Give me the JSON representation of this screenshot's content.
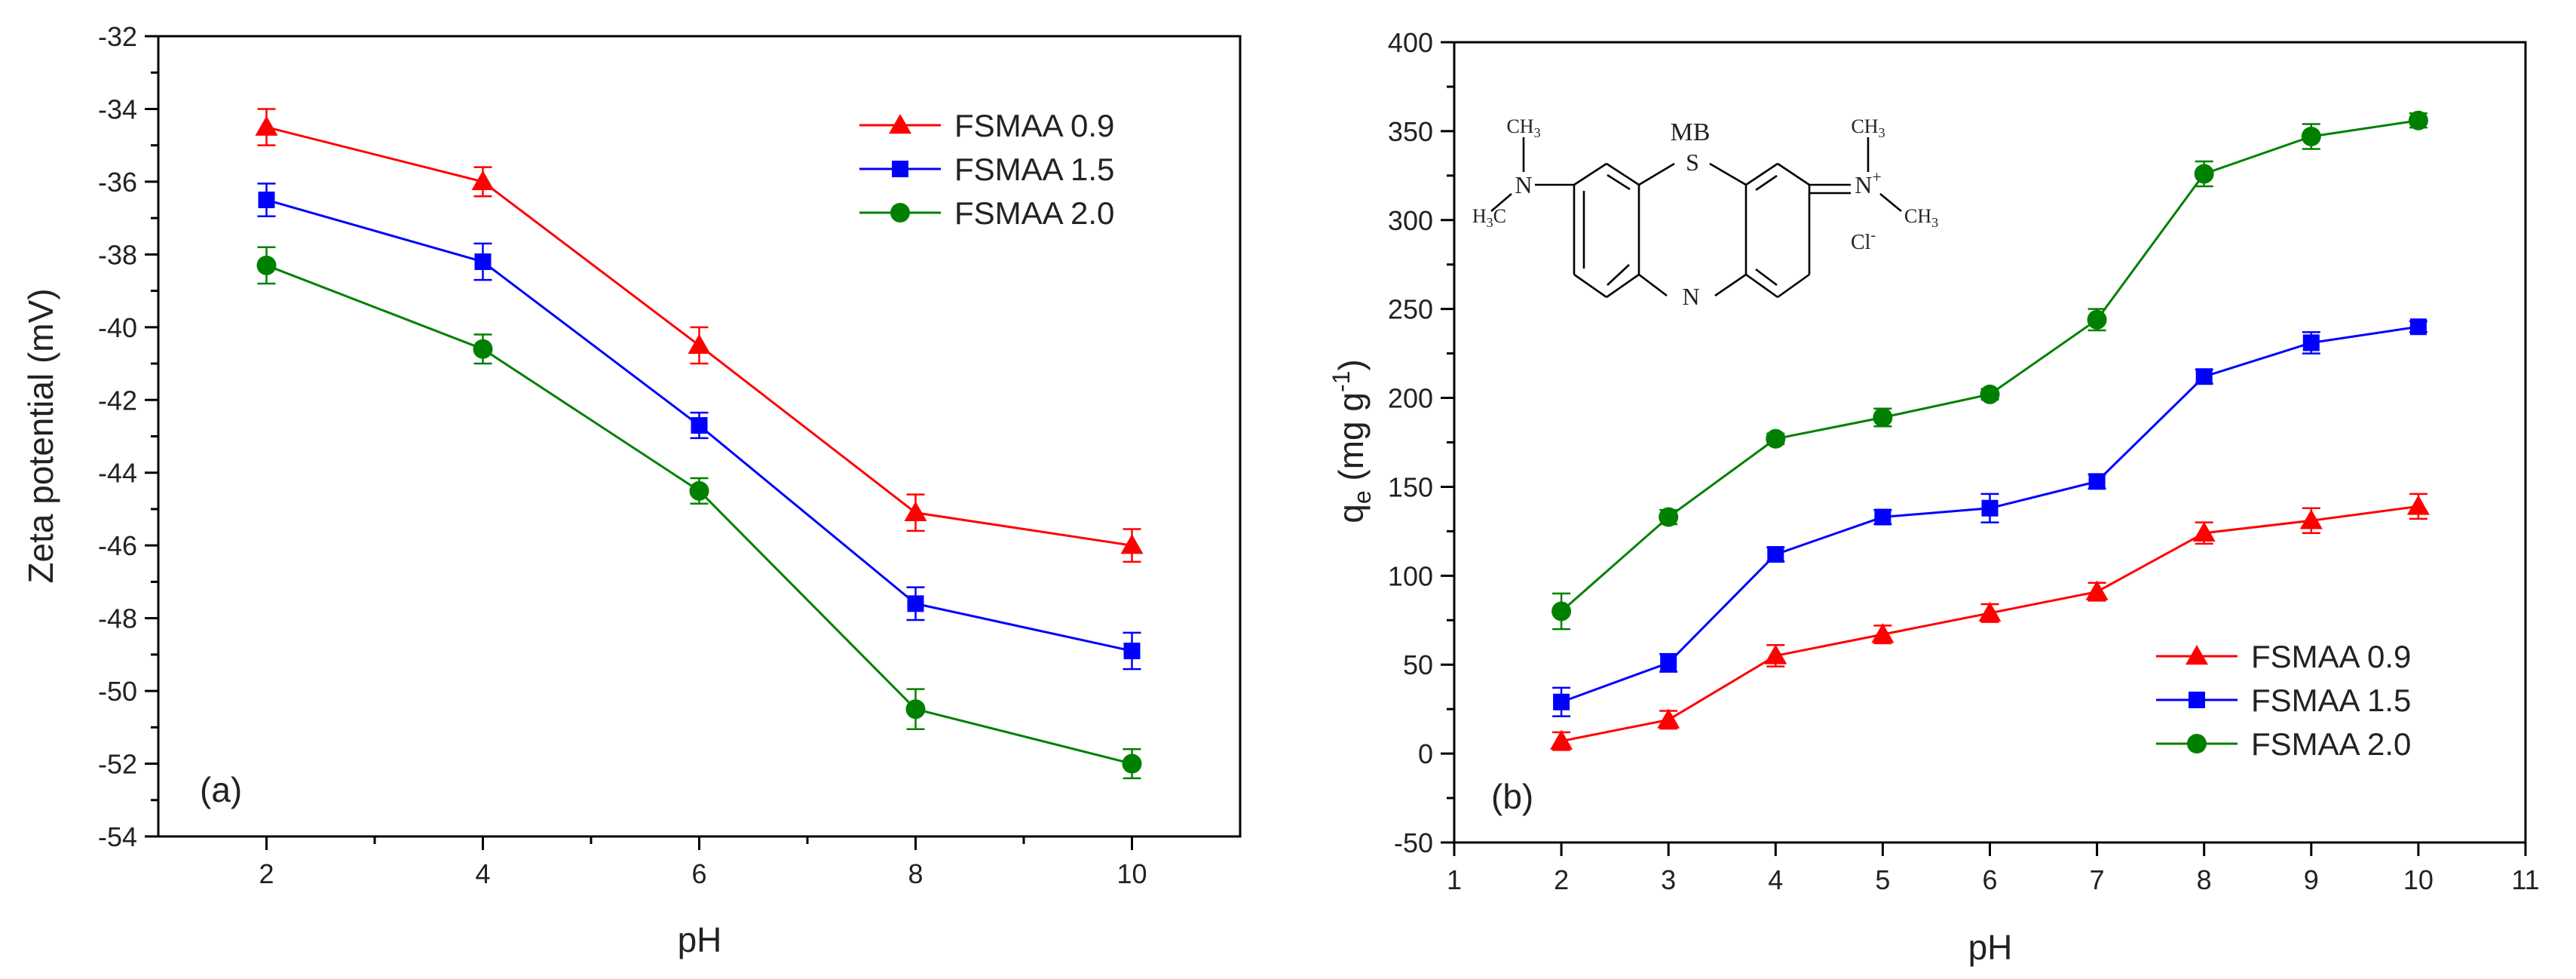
{
  "chart_data": [
    {
      "type": "line",
      "panel_label": "(a)",
      "xlabel": "pH",
      "ylabel": "Zeta potential (mV)",
      "xlim": [
        1,
        11
      ],
      "ylim": [
        -54,
        -32
      ],
      "xticks": [
        2,
        4,
        6,
        8,
        10
      ],
      "xminor": [
        3,
        5,
        7,
        9
      ],
      "yticks": [
        -54,
        -52,
        -50,
        -48,
        -46,
        -44,
        -42,
        -40,
        -38,
        -36,
        -34,
        -32
      ],
      "legend_position": "top-right",
      "x": [
        2,
        4,
        6,
        8,
        10
      ],
      "series": [
        {
          "name": "FSMAA 0.9",
          "color": "#ff0000",
          "marker": "triangle",
          "values": [
            -34.5,
            -36.0,
            -40.5,
            -45.1,
            -46.0
          ],
          "errors": [
            0.5,
            0.4,
            0.5,
            0.5,
            0.45
          ]
        },
        {
          "name": "FSMAA 1.5",
          "color": "#0000ff",
          "marker": "square",
          "values": [
            -36.5,
            -38.2,
            -42.7,
            -47.6,
            -48.9
          ],
          "errors": [
            0.45,
            0.5,
            0.35,
            0.45,
            0.5
          ]
        },
        {
          "name": "FSMAA 2.0",
          "color": "#008000",
          "marker": "circle",
          "values": [
            -38.3,
            -40.6,
            -44.5,
            -50.5,
            -52.0
          ],
          "errors": [
            0.5,
            0.4,
            0.35,
            0.55,
            0.4
          ]
        }
      ]
    },
    {
      "type": "line",
      "panel_label": "(b)",
      "xlabel": "pH",
      "ylabel_main": "q",
      "ylabel_sub": "e",
      "ylabel_mid": " (mg g",
      "ylabel_sup": "-1",
      "ylabel_end": ")",
      "xlim": [
        1,
        11
      ],
      "ylim": [
        -50,
        400
      ],
      "xticks": [
        1,
        2,
        3,
        4,
        5,
        6,
        7,
        8,
        9,
        10,
        11
      ],
      "yticks": [
        -50,
        0,
        50,
        100,
        150,
        200,
        250,
        300,
        350,
        400
      ],
      "legend_position": "bottom-right",
      "x": [
        2,
        3,
        4,
        5,
        6,
        7,
        8,
        9,
        10
      ],
      "series": [
        {
          "name": "FSMAA 0.9",
          "color": "#ff0000",
          "marker": "triangle",
          "values": [
            7,
            19,
            55,
            67,
            79,
            91,
            124,
            131,
            139
          ],
          "errors": [
            5,
            5,
            6,
            5,
            5,
            5,
            6,
            7,
            7
          ]
        },
        {
          "name": "FSMAA 1.5",
          "color": "#0000ff",
          "marker": "square",
          "values": [
            29,
            51,
            112,
            133,
            138,
            153,
            212,
            231,
            240
          ],
          "errors": [
            8,
            5,
            4,
            4,
            8,
            4,
            4,
            6,
            3
          ]
        },
        {
          "name": "FSMAA 2.0",
          "color": "#008000",
          "marker": "circle",
          "values": [
            80,
            133,
            177,
            189,
            202,
            244,
            326,
            347,
            356
          ],
          "errors": [
            10,
            4,
            3,
            5,
            3,
            6,
            7,
            7,
            4
          ]
        }
      ],
      "inset": {
        "title": "MB",
        "s": "S",
        "n": "N",
        "nplus": "N",
        "plus": "+",
        "ch3": "CH",
        "three": "3",
        "h3c_h": "H",
        "h3c_3": "3",
        "h3c_c": "C",
        "cl": "Cl",
        "minus": "-"
      }
    }
  ]
}
